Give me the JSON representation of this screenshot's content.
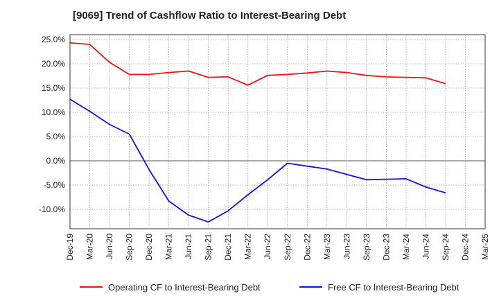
{
  "title": "[9069]  Trend of Cashflow Ratio to Interest-Bearing Debt",
  "chart_data": {
    "type": "line",
    "title": "[9069]  Trend of Cashflow Ratio to Interest-Bearing Debt",
    "xlabel": "",
    "ylabel": "",
    "x": [
      "Dec-19",
      "Mar-20",
      "Jun-20",
      "Sep-20",
      "Dec-20",
      "Mar-21",
      "Jun-21",
      "Sep-21",
      "Dec-21",
      "Mar-22",
      "Jun-22",
      "Sep-22",
      "Dec-22",
      "Mar-23",
      "Jun-23",
      "Sep-23",
      "Dec-23",
      "Mar-24",
      "Jun-24",
      "Sep-24",
      "Dec-24",
      "Mar-25"
    ],
    "ylim": [
      -14,
      26
    ],
    "yticks": [
      25,
      20,
      15,
      10,
      5,
      0,
      -5,
      -10
    ],
    "ytick_labels": [
      "25.0%",
      "20.0%",
      "15.0%",
      "10.0%",
      "5.0%",
      "0.0%",
      "-5.0%",
      "-10.0%"
    ],
    "grid": true,
    "legend_position": "bottom",
    "series": [
      {
        "name": "Operating CF to Interest-Bearing Debt",
        "color": "#ee1111",
        "values": [
          24.3,
          24.0,
          20.3,
          17.8,
          17.8,
          18.2,
          18.5,
          17.2,
          17.3,
          15.6,
          17.6,
          17.8,
          18.1,
          18.5,
          18.2,
          17.6,
          17.3,
          17.2,
          17.1,
          15.9,
          null,
          null
        ]
      },
      {
        "name": "Free CF to Interest-Bearing Debt",
        "color": "#1111dd",
        "values": [
          12.7,
          10.2,
          7.5,
          5.5,
          -1.8,
          -8.3,
          -11.2,
          -12.6,
          -10.3,
          -7.0,
          -3.9,
          -0.5,
          -1.1,
          -1.7,
          -2.8,
          -3.9,
          -3.8,
          -3.7,
          -5.4,
          -6.6,
          null,
          null
        ]
      }
    ]
  }
}
